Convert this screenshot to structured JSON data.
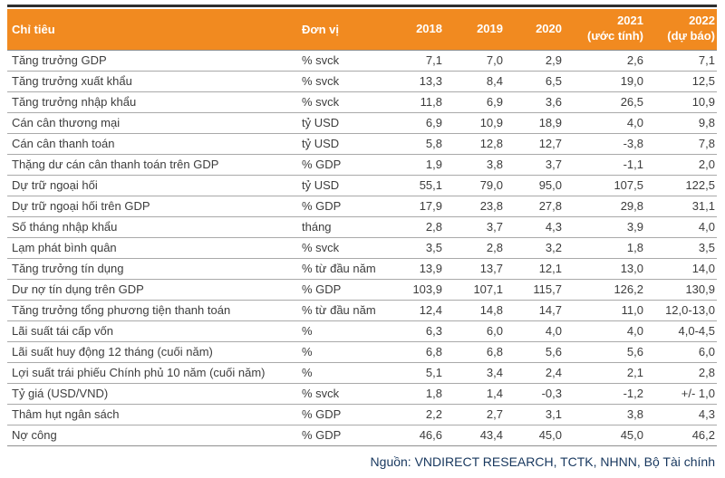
{
  "chart_data": {
    "type": "table",
    "columns": [
      "Chỉ tiêu",
      "Đơn vị",
      "2018",
      "2019",
      "2020",
      "2021 (ước tính)",
      "2022 (dự báo)"
    ],
    "header": {
      "indicator": "Chỉ tiêu",
      "unit": "Đơn vị",
      "years": [
        {
          "line1": "2018",
          "line2": ""
        },
        {
          "line1": "2019",
          "line2": ""
        },
        {
          "line1": "2020",
          "line2": ""
        },
        {
          "line1": "2021",
          "line2": "(ước tính)"
        },
        {
          "line1": "2022",
          "line2": "(dự báo)"
        }
      ]
    },
    "rows": [
      {
        "indicator": "Tăng trưởng GDP",
        "unit": "% svck",
        "values": [
          "7,1",
          "7,0",
          "2,9",
          "2,6",
          "7,1"
        ]
      },
      {
        "indicator": "Tăng trưởng xuất khẩu",
        "unit": "% svck",
        "values": [
          "13,3",
          "8,4",
          "6,5",
          "19,0",
          "12,5"
        ]
      },
      {
        "indicator": "Tăng trưởng nhập khẩu",
        "unit": "% svck",
        "values": [
          "11,8",
          "6,9",
          "3,6",
          "26,5",
          "10,9"
        ]
      },
      {
        "indicator": "Cán cân thương mại",
        "unit": "tỷ USD",
        "values": [
          "6,9",
          "10,9",
          "18,9",
          "4,0",
          "9,8"
        ]
      },
      {
        "indicator": "Cán cân thanh toán",
        "unit": "tỷ USD",
        "values": [
          "5,8",
          "12,8",
          "12,7",
          "-3,8",
          "7,8"
        ]
      },
      {
        "indicator": "Thặng dư cán cân thanh toán trên GDP",
        "unit": "% GDP",
        "values": [
          "1,9",
          "3,8",
          "3,7",
          "-1,1",
          "2,0"
        ]
      },
      {
        "indicator": "Dự trữ ngoại hối",
        "unit": "tỷ USD",
        "values": [
          "55,1",
          "79,0",
          "95,0",
          "107,5",
          "122,5"
        ]
      },
      {
        "indicator": "Dự trữ ngoại hối trên GDP",
        "unit": "% GDP",
        "values": [
          "17,9",
          "23,8",
          "27,8",
          "29,8",
          "31,1"
        ]
      },
      {
        "indicator": "Số tháng nhập khẩu",
        "unit": "tháng",
        "values": [
          "2,8",
          "3,7",
          "4,3",
          "3,9",
          "4,0"
        ]
      },
      {
        "indicator": "Lạm phát bình quân",
        "unit": "% svck",
        "values": [
          "3,5",
          "2,8",
          "3,2",
          "1,8",
          "3,5"
        ]
      },
      {
        "indicator": "Tăng trưởng tín dụng",
        "unit": "% từ đầu năm",
        "values": [
          "13,9",
          "13,7",
          "12,1",
          "13,0",
          "14,0"
        ]
      },
      {
        "indicator": "Dư nợ tín dụng trên GDP",
        "unit": "% GDP",
        "values": [
          "103,9",
          "107,1",
          "115,7",
          "126,2",
          "130,9"
        ]
      },
      {
        "indicator": "Tăng trưởng tổng phương tiện thanh toán",
        "unit": "% từ đầu năm",
        "values": [
          "12,4",
          "14,8",
          "14,7",
          "11,0",
          "12,0-13,0"
        ]
      },
      {
        "indicator": "Lãi suất tái cấp vốn",
        "unit": "%",
        "values": [
          "6,3",
          "6,0",
          "4,0",
          "4,0",
          "4,0-4,5"
        ]
      },
      {
        "indicator": "Lãi suất huy động 12 tháng (cuối năm)",
        "unit": "%",
        "values": [
          "6,8",
          "6,8",
          "5,6",
          "5,6",
          "6,0"
        ]
      },
      {
        "indicator": "Lợi suất trái phiếu Chính phủ 10 năm (cuối năm)",
        "unit": "%",
        "values": [
          "5,1",
          "3,4",
          "2,4",
          "2,1",
          "2,8"
        ]
      },
      {
        "indicator": "Tỷ giá (USD/VND)",
        "unit": "% svck",
        "values": [
          "1,8",
          "1,4",
          "-0,3",
          "-1,2",
          "+/- 1,0"
        ]
      },
      {
        "indicator": "Thâm hụt ngân sách",
        "unit": "% GDP",
        "values": [
          "2,2",
          "2,7",
          "3,1",
          "3,8",
          "4,3"
        ]
      },
      {
        "indicator": "Nợ công",
        "unit": "% GDP",
        "values": [
          "46,6",
          "43,4",
          "45,0",
          "45,0",
          "46,2"
        ]
      }
    ],
    "source_note": "Nguồn: VNDIRECT RESEARCH, TCTK, NHNN, Bộ Tài chính"
  },
  "colors": {
    "header_bg": "#F18A20",
    "header_text": "#FFFFFF",
    "top_rule": "#2E2E2E",
    "row_line": "#A9A9A9",
    "body_text": "#3D3D3D",
    "source_text": "#17375E"
  }
}
